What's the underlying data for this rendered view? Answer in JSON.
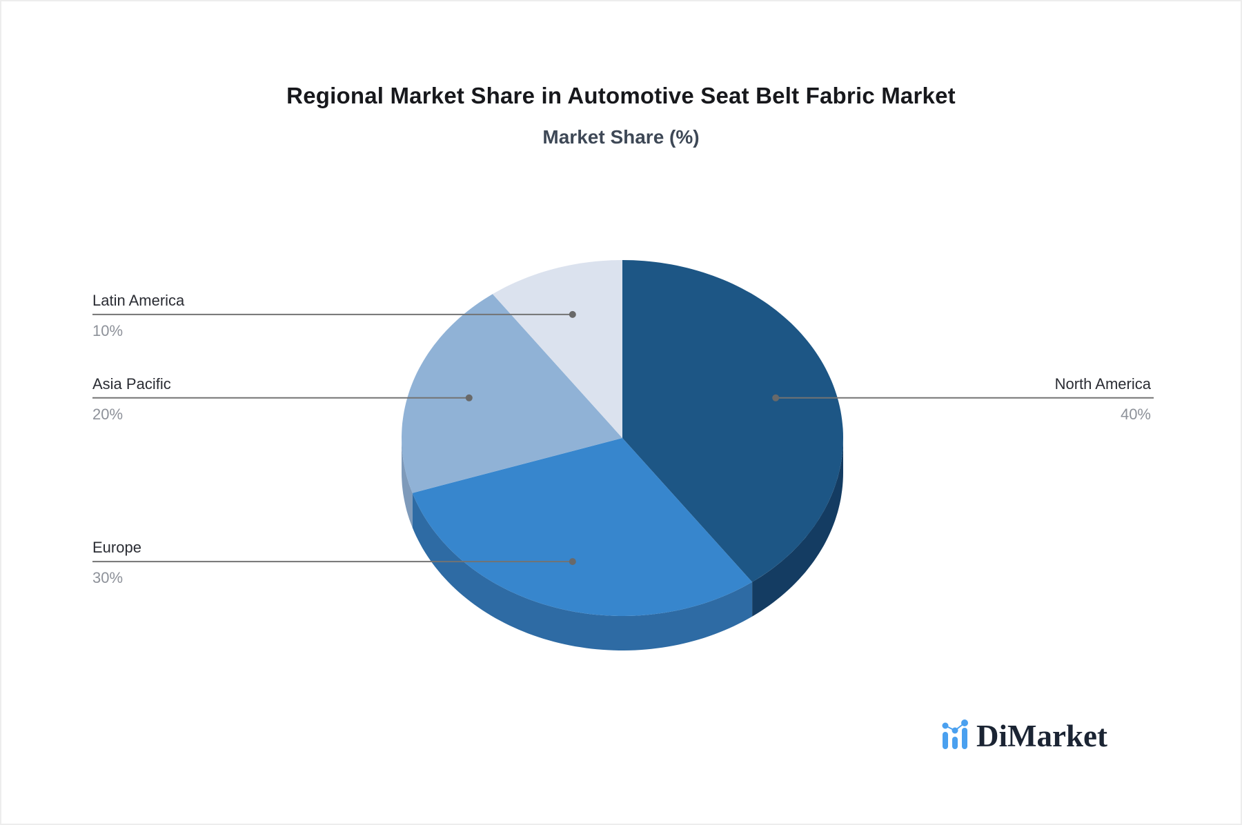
{
  "chart_data": {
    "type": "pie",
    "style": "pie3d",
    "title": "Regional Market Share in Automotive Seat Belt Fabric Market",
    "subtitle": "Market Share (%)",
    "unit": "%",
    "start_angle_deg": 90,
    "direction": "clockwise",
    "label_style": "leader-lines",
    "slices": [
      {
        "label": "North America",
        "value": 40,
        "pct_label": "40%",
        "color": "#1D5685",
        "side_color": "#143C62"
      },
      {
        "label": "Europe",
        "value": 30,
        "pct_label": "30%",
        "color": "#3786CD",
        "side_color": "#2E6BA4"
      },
      {
        "label": "Asia Pacific",
        "value": 20,
        "pct_label": "20%",
        "color": "#90B2D6",
        "side_color": "#7E9ABA"
      },
      {
        "label": "Latin America",
        "value": 10,
        "pct_label": "10%",
        "color": "#DBE2EE",
        "side_color": "#C3CEDF"
      }
    ]
  },
  "colors": {
    "background": "#FFFFFF",
    "leader_line": "#737373",
    "leader_dot": "#696969",
    "label_text": "#2A2C33",
    "pct_text": "#8D9199",
    "title_text": "#17181C",
    "subtitle_text": "#3E4856"
  },
  "branding": {
    "logo_text": "DiMarket",
    "logo_icon": "bar-line-chart-icon",
    "logo_icon_color": "#4AA0EF",
    "logo_text_color": "#1B2433"
  }
}
